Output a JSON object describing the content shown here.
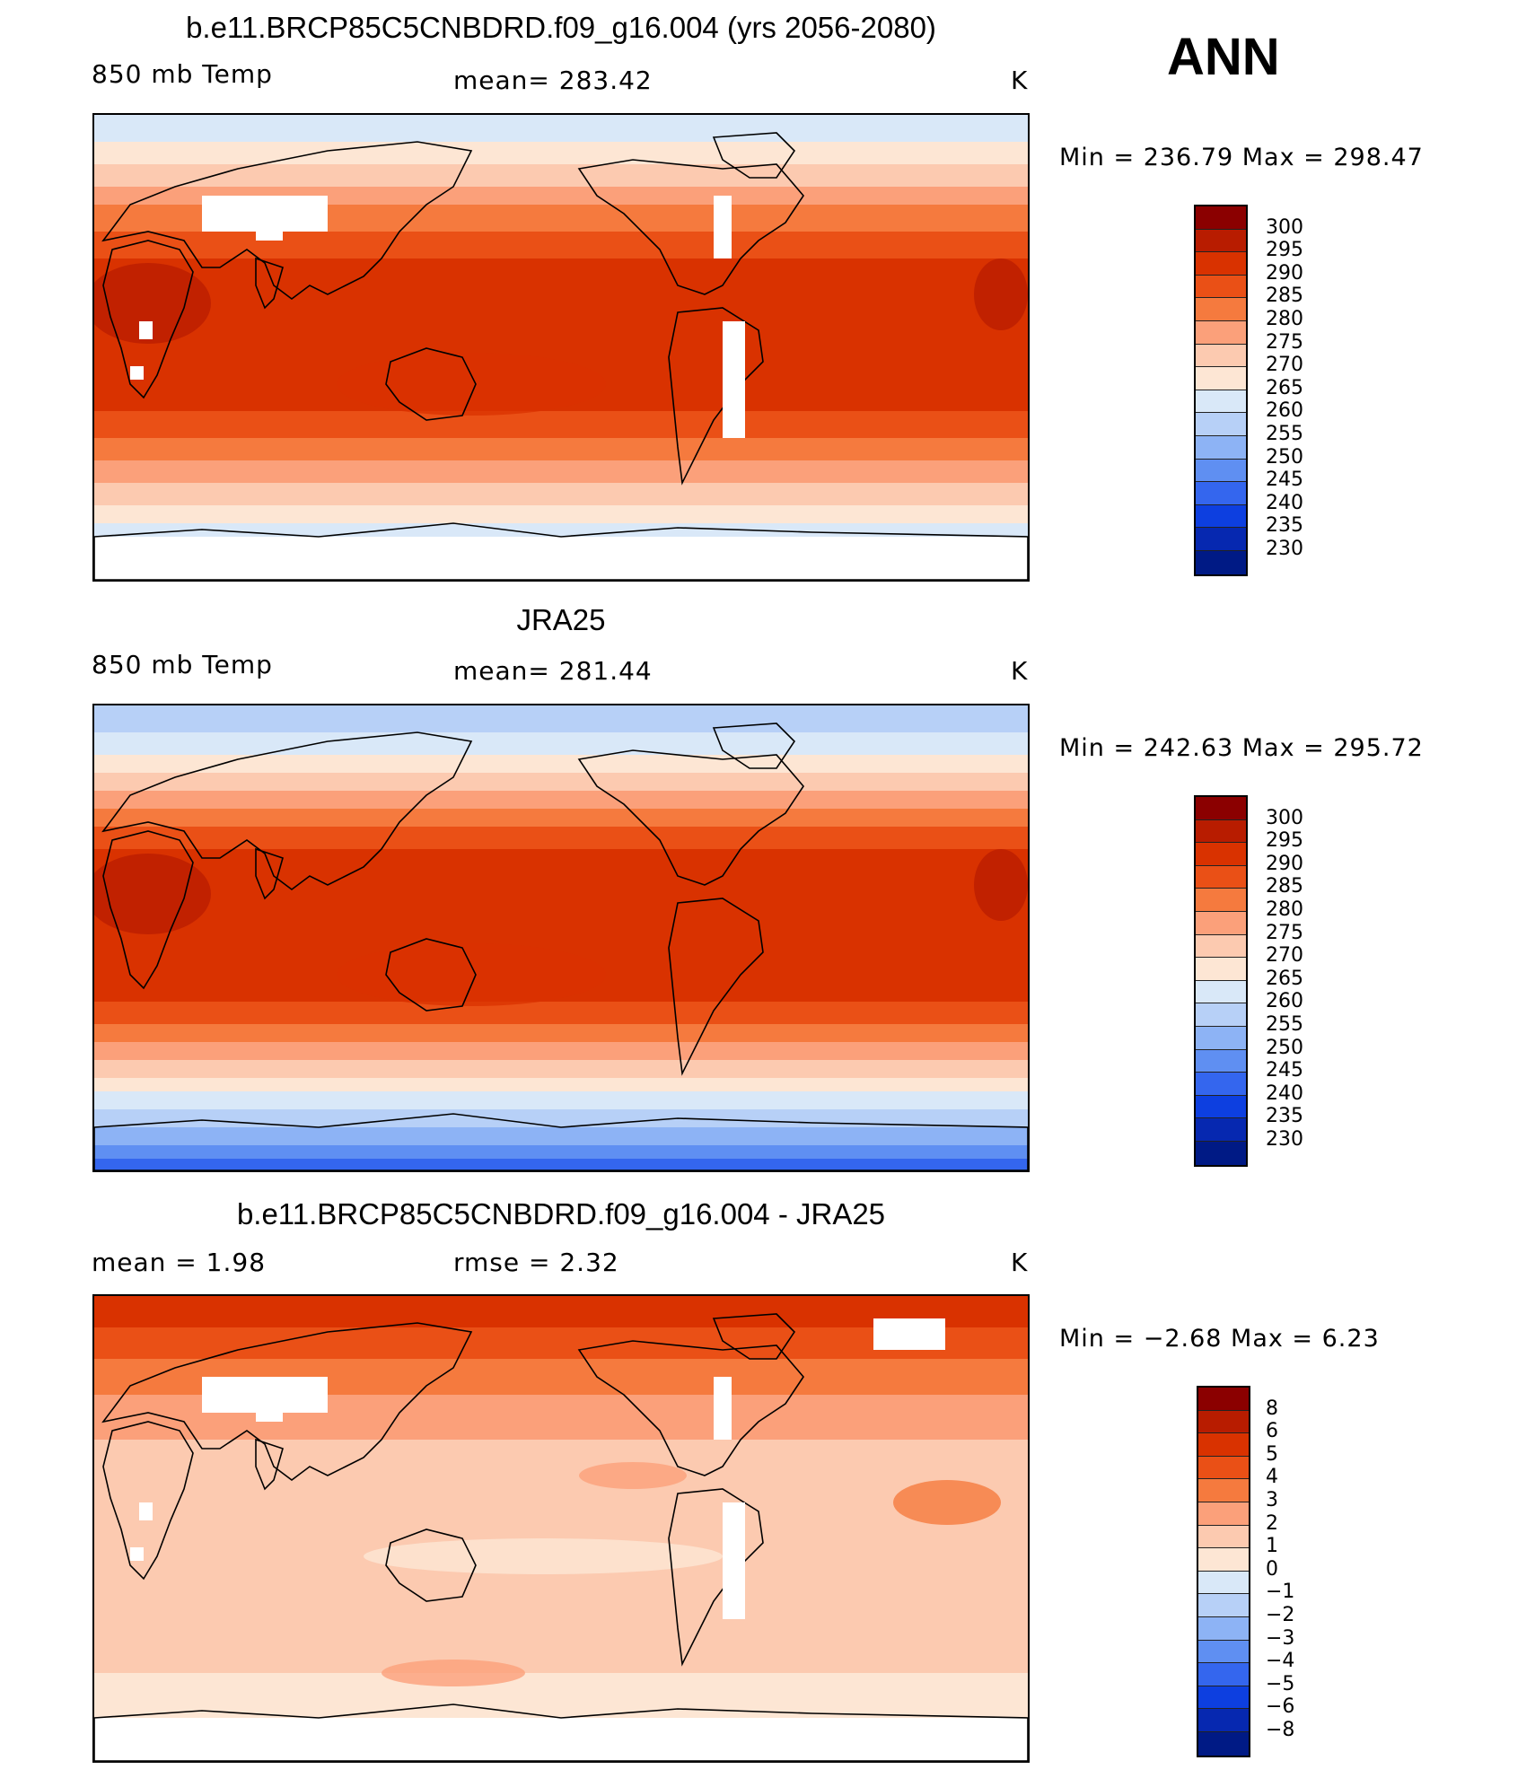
{
  "panels": [
    {
      "title": "b.e11.BRCP85C5CNBDRD.f09_g16.004 (yrs 2056-2080)",
      "left_label": "850 mb Temp",
      "center_label": "mean=  283.42",
      "units": "K",
      "minmax": "Min  =  236.79  Max  =  298.47",
      "variant": "model"
    },
    {
      "title": "JRA25",
      "left_label": "850 mb Temp",
      "center_label": "mean=  281.44",
      "units": "K",
      "minmax": "Min  =  242.63  Max  =  295.72",
      "variant": "obs"
    },
    {
      "title": "b.e11.BRCP85C5CNBDRD.f09_g16.004 - JRA25",
      "left_label": "mean  =     1.98",
      "center_label": "rmse  =     2.32",
      "units": "K",
      "minmax": "Min  =    −2.68  Max  =     6.23",
      "variant": "diff"
    }
  ],
  "season": "ANN",
  "colorbars": {
    "temp": {
      "labels": [
        "300",
        "295",
        "290",
        "285",
        "280",
        "275",
        "270",
        "265",
        "260",
        "255",
        "250",
        "245",
        "240",
        "235",
        "230"
      ],
      "colors": [
        "#8b0000",
        "#b81c00",
        "#d93200",
        "#ea5016",
        "#f57a3e",
        "#fba07a",
        "#fccab0",
        "#fde6d4",
        "#d9e8f8",
        "#b7d0f7",
        "#8db3f5",
        "#5f8ff2",
        "#3466ee",
        "#0d3fe0",
        "#0628b0",
        "#001a85"
      ]
    },
    "diff": {
      "labels": [
        "8",
        "6",
        "5",
        "4",
        "3",
        "2",
        "1",
        "0",
        "−1",
        "−2",
        "−3",
        "−4",
        "−5",
        "−6",
        "−8"
      ],
      "colors": [
        "#8b0000",
        "#b81c00",
        "#d93200",
        "#ea5016",
        "#f57a3e",
        "#fba07a",
        "#fccab0",
        "#fde6d4",
        "#d9e8f8",
        "#b7d0f7",
        "#8db3f5",
        "#5f8ff2",
        "#3466ee",
        "#0d3fe0",
        "#0628b0",
        "#001a85"
      ]
    }
  }
}
